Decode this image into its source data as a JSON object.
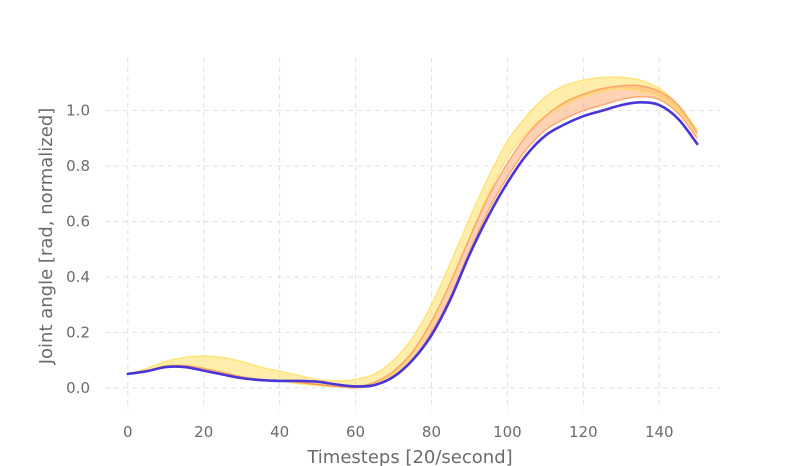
{
  "chart_data": {
    "type": "line",
    "title": "",
    "xlabel": "Timesteps [20/second]",
    "ylabel": "Joint angle [rad, normalized]",
    "xlim": [
      -6,
      156
    ],
    "ylim": [
      -0.08,
      1.19
    ],
    "xticks": [
      0,
      20,
      40,
      60,
      80,
      100,
      120,
      140
    ],
    "yticks": [
      0.0,
      0.2,
      0.4,
      0.6,
      0.8,
      1.0
    ],
    "xtick_labels": [
      "0",
      "20",
      "40",
      "60",
      "80",
      "100",
      "120",
      "140"
    ],
    "ytick_labels": [
      "0.0",
      "0.2",
      "0.4",
      "0.6",
      "0.8",
      "1.0"
    ],
    "grid": true,
    "x": [
      0,
      5,
      10,
      15,
      20,
      25,
      30,
      35,
      40,
      45,
      50,
      55,
      60,
      65,
      70,
      75,
      80,
      85,
      90,
      95,
      100,
      105,
      110,
      115,
      120,
      125,
      130,
      135,
      140,
      145,
      150
    ],
    "series": [
      {
        "name": "mean",
        "color": "#4a35d6",
        "values": [
          0.05,
          0.06,
          0.075,
          0.075,
          0.062,
          0.048,
          0.035,
          0.028,
          0.025,
          0.025,
          0.022,
          0.012,
          0.005,
          0.01,
          0.04,
          0.1,
          0.19,
          0.32,
          0.48,
          0.62,
          0.74,
          0.84,
          0.91,
          0.95,
          0.98,
          1.0,
          1.02,
          1.03,
          1.02,
          0.97,
          0.88
        ]
      },
      {
        "name": "yellow band",
        "color": "#ffe066",
        "lower": [
          0.05,
          0.06,
          0.08,
          0.08,
          0.07,
          0.055,
          0.04,
          0.03,
          0.025,
          0.015,
          0.008,
          0.005,
          0.005,
          0.015,
          0.05,
          0.12,
          0.23,
          0.38,
          0.54,
          0.7,
          0.83,
          0.92,
          0.98,
          1.02,
          1.05,
          1.07,
          1.08,
          1.07,
          1.05,
          1.0,
          0.92
        ],
        "upper": [
          0.05,
          0.07,
          0.095,
          0.11,
          0.115,
          0.11,
          0.095,
          0.075,
          0.06,
          0.045,
          0.03,
          0.025,
          0.03,
          0.05,
          0.1,
          0.18,
          0.3,
          0.45,
          0.61,
          0.76,
          0.89,
          0.98,
          1.05,
          1.09,
          1.11,
          1.12,
          1.12,
          1.11,
          1.08,
          1.02,
          0.93
        ]
      },
      {
        "name": "orange band",
        "color": "#ff9a5a",
        "lower": [
          0.05,
          0.06,
          0.075,
          0.075,
          0.062,
          0.048,
          0.035,
          0.028,
          0.025,
          0.02,
          0.012,
          0.005,
          0.0,
          0.01,
          0.04,
          0.1,
          0.2,
          0.33,
          0.49,
          0.64,
          0.76,
          0.86,
          0.93,
          0.97,
          1.0,
          1.02,
          1.04,
          1.05,
          1.04,
          0.99,
          0.9
        ],
        "upper": [
          0.05,
          0.06,
          0.078,
          0.08,
          0.07,
          0.055,
          0.04,
          0.03,
          0.025,
          0.02,
          0.012,
          0.006,
          0.004,
          0.02,
          0.06,
          0.13,
          0.24,
          0.38,
          0.54,
          0.69,
          0.81,
          0.91,
          0.98,
          1.03,
          1.06,
          1.08,
          1.09,
          1.09,
          1.07,
          1.02,
          0.92
        ]
      }
    ]
  }
}
